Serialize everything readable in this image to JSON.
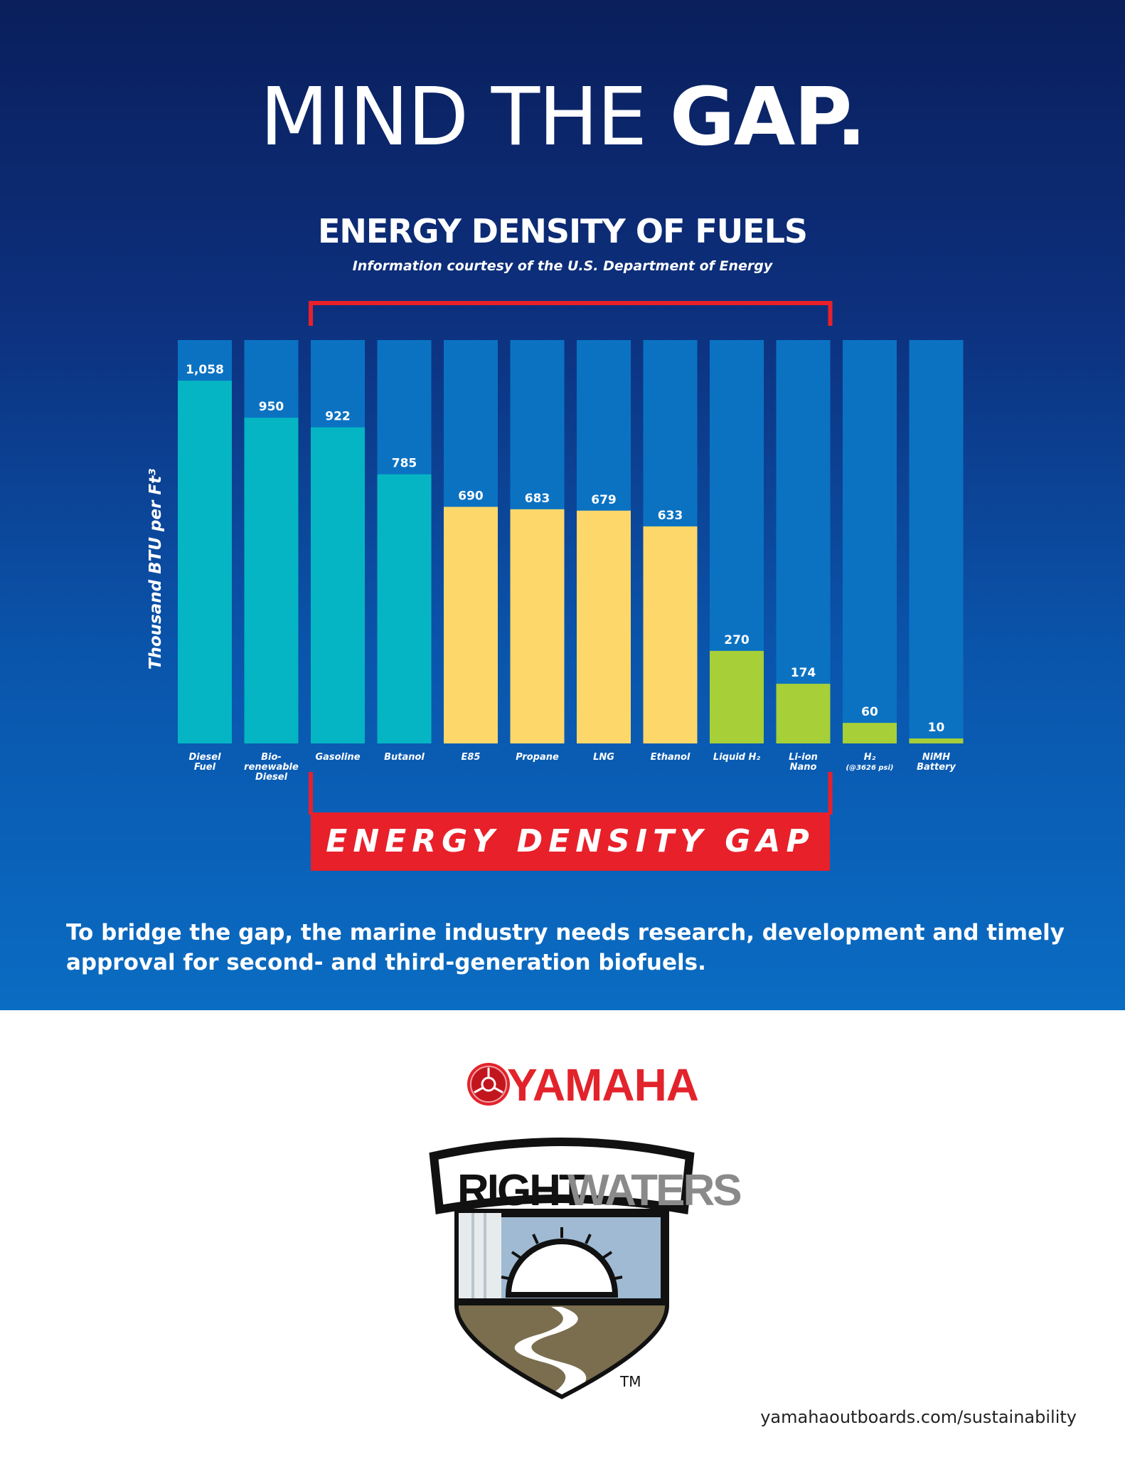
{
  "headline": {
    "thin": "MIND THE ",
    "bold": "GAP."
  },
  "chart_data": {
    "type": "bar",
    "title": "ENERGY DENSITY OF FUELS",
    "subtitle": "Information courtesy of the U.S. Department of Energy",
    "ylabel": "Thousand BTU per Ft³",
    "xlabel": "",
    "ylim": [
      0,
      1200
    ],
    "categories": [
      [
        "Diesel",
        "Fuel"
      ],
      [
        "Bio-",
        "renewable",
        "Diesel"
      ],
      [
        "Gasoline"
      ],
      [
        "Butanol"
      ],
      [
        "E85"
      ],
      [
        "Propane"
      ],
      [
        "LNG"
      ],
      [
        "Ethanol"
      ],
      [
        "Liquid H₂"
      ],
      [
        "Li-ion",
        "Nano"
      ],
      [
        "H₂",
        "(@3626 psi)"
      ],
      [
        "NiMH",
        "Battery"
      ]
    ],
    "values": [
      1058,
      950,
      922,
      785,
      690,
      683,
      679,
      633,
      270,
      174,
      60,
      10
    ],
    "value_labels": [
      "1,058",
      "950",
      "922",
      "785",
      "690",
      "683",
      "679",
      "633",
      "270",
      "174",
      "60",
      "10"
    ],
    "bar_colors": [
      "#05b5c3",
      "#05b5c3",
      "#05b5c3",
      "#05b5c3",
      "#fdd76a",
      "#fdd76a",
      "#fdd76a",
      "#fdd76a",
      "#a6cf38",
      "#a6cf38",
      "#a6cf38",
      "#a6cf38"
    ],
    "track_color": "#0b72c2",
    "gap_bracket": {
      "from_category": "Gasoline",
      "to_category": "Li-ion Nano",
      "color": "#e8202a"
    },
    "grid": false
  },
  "gap_label": "ENERGY DENSITY GAP",
  "body_text": "To bridge the gap, the marine industry needs research, development and timely approval for second- and third-generation biofuels.",
  "brand": {
    "name": "YAMAHA",
    "badge_word1": "RIGHT",
    "badge_word2": "WATERS",
    "trademark": "TM",
    "brand_color": "#e3232b"
  },
  "url": "yamahaoutboards.com/sustainability"
}
